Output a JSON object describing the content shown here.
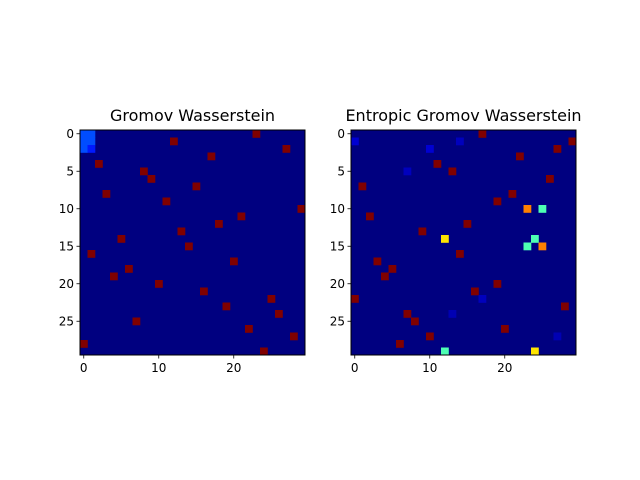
{
  "chart_data": [
    {
      "type": "heatmap",
      "title": "Gromov Wasserstein",
      "colormap": "jet",
      "shape": [
        30,
        30
      ],
      "background_value": 0.0,
      "xticks": [
        0,
        10,
        20
      ],
      "yticks": [
        0,
        5,
        10,
        15,
        20,
        25
      ],
      "cells": [
        {
          "row": 0,
          "col": 0,
          "value": 0.2
        },
        {
          "row": 0,
          "col": 1,
          "value": 0.2
        },
        {
          "row": 1,
          "col": 0,
          "value": 0.2
        },
        {
          "row": 1,
          "col": 1,
          "value": 0.2
        },
        {
          "row": 2,
          "col": 0,
          "value": 0.2
        },
        {
          "row": 2,
          "col": 1,
          "value": 0.15
        },
        {
          "row": 0,
          "col": 23,
          "value": 1.0
        },
        {
          "row": 1,
          "col": 12,
          "value": 1.0
        },
        {
          "row": 2,
          "col": 27,
          "value": 1.0
        },
        {
          "row": 3,
          "col": 17,
          "value": 1.0
        },
        {
          "row": 4,
          "col": 2,
          "value": 1.0
        },
        {
          "row": 5,
          "col": 8,
          "value": 1.0
        },
        {
          "row": 6,
          "col": 9,
          "value": 1.0
        },
        {
          "row": 7,
          "col": 15,
          "value": 1.0
        },
        {
          "row": 8,
          "col": 3,
          "value": 1.0
        },
        {
          "row": 9,
          "col": 11,
          "value": 1.0
        },
        {
          "row": 10,
          "col": 29,
          "value": 1.0
        },
        {
          "row": 11,
          "col": 21,
          "value": 1.0
        },
        {
          "row": 12,
          "col": 18,
          "value": 1.0
        },
        {
          "row": 13,
          "col": 13,
          "value": 1.0
        },
        {
          "row": 14,
          "col": 5,
          "value": 1.0
        },
        {
          "row": 15,
          "col": 14,
          "value": 1.0
        },
        {
          "row": 16,
          "col": 1,
          "value": 1.0
        },
        {
          "row": 17,
          "col": 20,
          "value": 1.0
        },
        {
          "row": 18,
          "col": 6,
          "value": 1.0
        },
        {
          "row": 19,
          "col": 4,
          "value": 1.0
        },
        {
          "row": 20,
          "col": 10,
          "value": 1.0
        },
        {
          "row": 21,
          "col": 16,
          "value": 1.0
        },
        {
          "row": 22,
          "col": 25,
          "value": 1.0
        },
        {
          "row": 23,
          "col": 19,
          "value": 1.0
        },
        {
          "row": 24,
          "col": 26,
          "value": 1.0
        },
        {
          "row": 25,
          "col": 7,
          "value": 1.0
        },
        {
          "row": 26,
          "col": 22,
          "value": 1.0
        },
        {
          "row": 27,
          "col": 28,
          "value": 1.0
        },
        {
          "row": 28,
          "col": 0,
          "value": 1.0
        },
        {
          "row": 29,
          "col": 24,
          "value": 1.0
        }
      ]
    },
    {
      "type": "heatmap",
      "title": "Entropic Gromov Wasserstein",
      "colormap": "jet",
      "shape": [
        30,
        30
      ],
      "background_value": 0.0,
      "xticks": [
        0,
        10,
        20
      ],
      "yticks": [
        0,
        5,
        10,
        15,
        20,
        25
      ],
      "cells": [
        {
          "row": 0,
          "col": 17,
          "value": 1.0
        },
        {
          "row": 1,
          "col": 29,
          "value": 1.0
        },
        {
          "row": 2,
          "col": 27,
          "value": 1.0
        },
        {
          "row": 3,
          "col": 22,
          "value": 1.0
        },
        {
          "row": 4,
          "col": 11,
          "value": 1.0
        },
        {
          "row": 5,
          "col": 13,
          "value": 1.0
        },
        {
          "row": 6,
          "col": 26,
          "value": 1.0
        },
        {
          "row": 7,
          "col": 1,
          "value": 1.0
        },
        {
          "row": 8,
          "col": 21,
          "value": 1.0
        },
        {
          "row": 9,
          "col": 19,
          "value": 1.0
        },
        {
          "row": 10,
          "col": 23,
          "value": 0.75
        },
        {
          "row": 10,
          "col": 25,
          "value": 0.45
        },
        {
          "row": 11,
          "col": 2,
          "value": 1.0
        },
        {
          "row": 12,
          "col": 15,
          "value": 1.0
        },
        {
          "row": 13,
          "col": 9,
          "value": 1.0
        },
        {
          "row": 14,
          "col": 12,
          "value": 0.65
        },
        {
          "row": 14,
          "col": 24,
          "value": 0.45
        },
        {
          "row": 15,
          "col": 23,
          "value": 0.45
        },
        {
          "row": 15,
          "col": 25,
          "value": 0.75
        },
        {
          "row": 16,
          "col": 14,
          "value": 1.0
        },
        {
          "row": 17,
          "col": 3,
          "value": 1.0
        },
        {
          "row": 18,
          "col": 5,
          "value": 1.0
        },
        {
          "row": 19,
          "col": 4,
          "value": 1.0
        },
        {
          "row": 20,
          "col": 19,
          "value": 1.0
        },
        {
          "row": 21,
          "col": 16,
          "value": 1.0
        },
        {
          "row": 22,
          "col": 0,
          "value": 1.0
        },
        {
          "row": 23,
          "col": 28,
          "value": 1.0
        },
        {
          "row": 24,
          "col": 7,
          "value": 1.0
        },
        {
          "row": 25,
          "col": 8,
          "value": 1.0
        },
        {
          "row": 26,
          "col": 20,
          "value": 1.0
        },
        {
          "row": 27,
          "col": 10,
          "value": 1.0
        },
        {
          "row": 28,
          "col": 6,
          "value": 1.0
        },
        {
          "row": 29,
          "col": 12,
          "value": 0.45
        },
        {
          "row": 29,
          "col": 24,
          "value": 0.65
        },
        {
          "row": 1,
          "col": 0,
          "value": 0.08
        },
        {
          "row": 2,
          "col": 10,
          "value": 0.08
        },
        {
          "row": 1,
          "col": 14,
          "value": 0.06
        },
        {
          "row": 5,
          "col": 7,
          "value": 0.06
        },
        {
          "row": 22,
          "col": 17,
          "value": 0.06
        },
        {
          "row": 24,
          "col": 13,
          "value": 0.05
        },
        {
          "row": 27,
          "col": 27,
          "value": 0.05
        }
      ]
    }
  ]
}
